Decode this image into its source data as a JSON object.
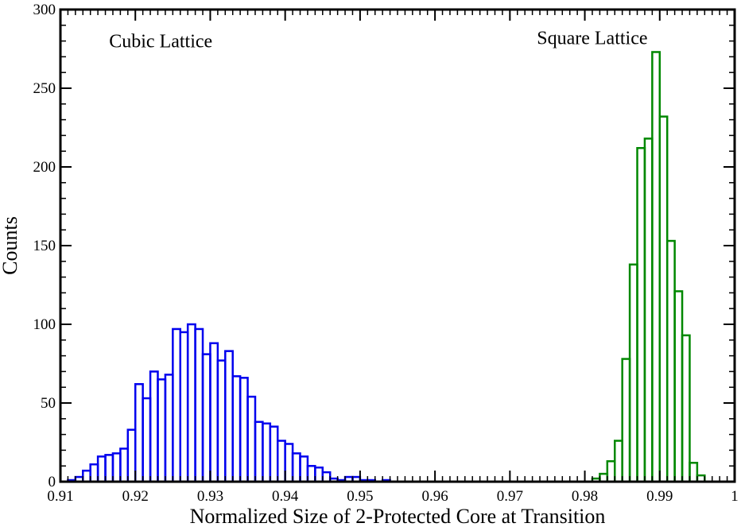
{
  "chart_data": {
    "type": "histogram",
    "title": "",
    "xlabel": "Normalized Size of 2-Protected Core at Transition",
    "ylabel": "Counts",
    "xlim": [
      0.91,
      1.0
    ],
    "ylim": [
      0,
      300
    ],
    "x_ticks": [
      0.91,
      0.92,
      0.93,
      0.94,
      0.95,
      0.96,
      0.97,
      0.98,
      0.99,
      1.0
    ],
    "x_tick_labels": [
      "0.91",
      "0.92",
      "0.93",
      "0.94",
      "0.95",
      "0.96",
      "0.97",
      "0.98",
      "0.99",
      "1"
    ],
    "y_ticks": [
      0,
      50,
      100,
      150,
      200,
      250,
      300
    ],
    "y_tick_labels": [
      "0",
      "50",
      "100",
      "150",
      "200",
      "250",
      "300"
    ],
    "grid": false,
    "bin_width": 0.001,
    "series": [
      {
        "label": "Cubic Lattice",
        "color": "#0000ee",
        "bin_start": 0.911,
        "values": [
          1,
          3,
          7,
          11,
          16,
          17,
          18,
          21,
          33,
          62,
          53,
          70,
          65,
          68,
          97,
          95,
          100,
          97,
          81,
          88,
          77,
          83,
          67,
          66,
          54,
          38,
          37,
          35,
          26,
          24,
          18,
          16,
          10,
          9,
          6,
          2,
          1,
          3,
          3,
          1,
          1,
          0,
          1
        ]
      },
      {
        "label": "Square Lattice",
        "color": "#008800",
        "bin_start": 0.981,
        "values": [
          2,
          5,
          13,
          26,
          78,
          138,
          212,
          218,
          273,
          232,
          153,
          121,
          93,
          12,
          4
        ]
      }
    ],
    "annotations": [
      {
        "text": "Cubic Lattice"
      },
      {
        "text": "Square Lattice"
      }
    ]
  }
}
